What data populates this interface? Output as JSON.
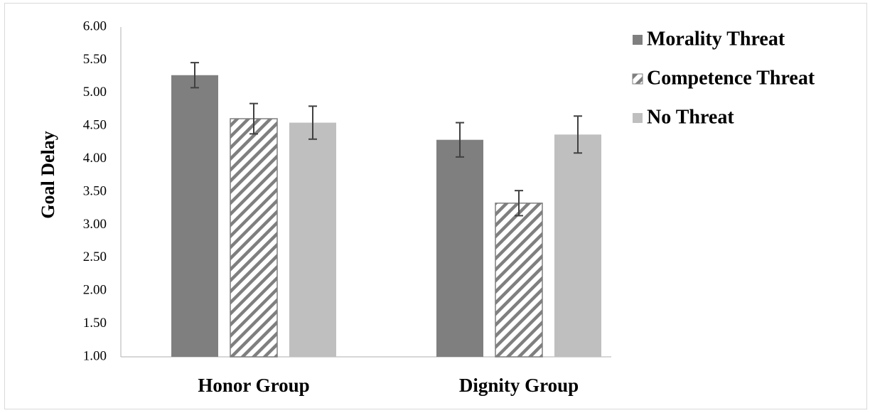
{
  "chart_data": {
    "type": "bar",
    "ylabel": "Goal Delay",
    "xlabel": "",
    "ylim": [
      1.0,
      6.0
    ],
    "yticks": [
      "1.00",
      "1.50",
      "2.00",
      "2.50",
      "3.00",
      "3.50",
      "4.00",
      "4.50",
      "5.00",
      "5.50",
      "6.00"
    ],
    "categories": [
      "Honor Group",
      "Dignity Group"
    ],
    "series": [
      {
        "name": "Morality Threat",
        "values": [
          5.27,
          4.29
        ],
        "errors": [
          0.19,
          0.26
        ],
        "color": "#7f7f7f",
        "pattern": "solid"
      },
      {
        "name": "Competence Threat",
        "values": [
          4.61,
          3.33
        ],
        "errors": [
          0.23,
          0.19
        ],
        "color": "#7f7f7f",
        "pattern": "diagonal-hatch"
      },
      {
        "name": "No Threat",
        "values": [
          4.55,
          4.37
        ],
        "errors": [
          0.25,
          0.28
        ],
        "color": "#bfbfbf",
        "pattern": "solid"
      }
    ],
    "legend_position": "top-right",
    "grid": false
  }
}
